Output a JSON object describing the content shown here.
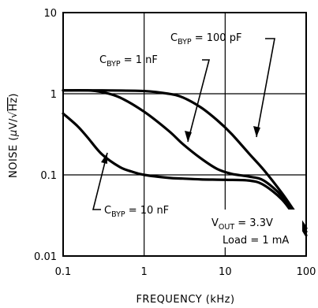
{
  "chart_data": {
    "type": "line",
    "xlabel": "FREQUENCY (kHz)",
    "ylabel": {
      "prefix": "NOISE (",
      "mu": "μ",
      "unit_mid": "V/",
      "root": "√",
      "unit_end": "Hz",
      "suffix": ")"
    },
    "x_scale": "log",
    "y_scale": "log",
    "xlim": [
      0.1,
      100
    ],
    "ylim": [
      0.01,
      10
    ],
    "x_ticks": [
      {
        "value": 0.1,
        "label": "0.1"
      },
      {
        "value": 1,
        "label": "1"
      },
      {
        "value": 10,
        "label": "10"
      },
      {
        "value": 100,
        "label": "100"
      }
    ],
    "y_ticks": [
      {
        "value": 0.01,
        "label": "0.01"
      },
      {
        "value": 0.1,
        "label": "0.1"
      },
      {
        "value": 1,
        "label": "1"
      },
      {
        "value": 10,
        "label": "10"
      }
    ],
    "grid": true,
    "series": [
      {
        "name": "CBYP = 100 pF",
        "label": {
          "main": "C",
          "sub": "BYP",
          "rest": " = 100 pF"
        },
        "x": [
          0.1,
          0.3,
          1,
          2,
          3,
          5,
          8,
          12,
          20,
          30,
          50,
          70,
          100
        ],
        "values": [
          1.1,
          1.1,
          1.08,
          1.0,
          0.9,
          0.68,
          0.47,
          0.32,
          0.18,
          0.115,
          0.06,
          0.037,
          0.022
        ]
      },
      {
        "name": "CBYP = 1 nF",
        "label": {
          "main": "C",
          "sub": "BYP",
          "rest": " = 1 nF"
        },
        "x": [
          0.1,
          0.2,
          0.3,
          0.5,
          1,
          2,
          3,
          5,
          8,
          12,
          20,
          30,
          50,
          70,
          100
        ],
        "values": [
          1.1,
          1.1,
          1.05,
          0.9,
          0.6,
          0.35,
          0.24,
          0.16,
          0.118,
          0.103,
          0.095,
          0.085,
          0.055,
          0.034,
          0.02
        ]
      },
      {
        "name": "CBYP = 10 nF",
        "label": {
          "main": "C",
          "sub": "BYP",
          "rest": " = 10 nF"
        },
        "x": [
          0.1,
          0.15,
          0.2,
          0.3,
          0.5,
          0.7,
          1,
          2,
          3,
          5,
          10,
          20,
          30,
          50,
          70,
          100
        ],
        "values": [
          0.57,
          0.4,
          0.29,
          0.18,
          0.125,
          0.11,
          0.1,
          0.092,
          0.09,
          0.088,
          0.087,
          0.085,
          0.075,
          0.05,
          0.032,
          0.018
        ]
      }
    ],
    "annotations": {
      "vout": {
        "main": "V",
        "sub": "OUT",
        "rest": " = 3.3V"
      },
      "load": "Load = 1 mA"
    }
  }
}
